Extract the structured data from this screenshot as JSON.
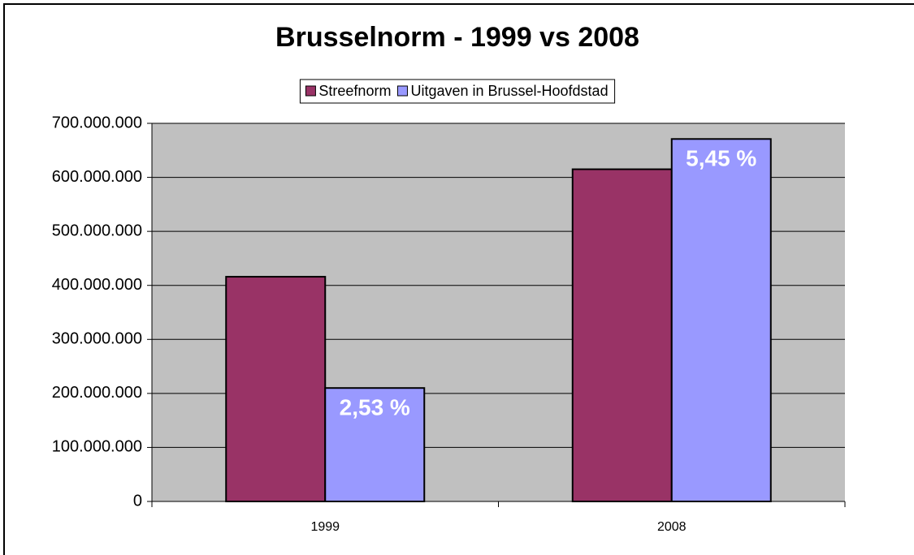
{
  "chart_data": {
    "type": "bar",
    "title": "Brusselnorm - 1999 vs 2008",
    "categories": [
      "1999",
      "2008"
    ],
    "series": [
      {
        "name": "Streefnorm",
        "color": "#993366",
        "values": [
          416000000,
          615000000
        ]
      },
      {
        "name": "Uitgaven in Brussel-Hoofdstad",
        "color": "#9999ff",
        "values": [
          210000000,
          671000000
        ]
      }
    ],
    "annotations": [
      "2,53 %",
      "5,45 %"
    ],
    "ylim": [
      0,
      700000000
    ],
    "yticks": [
      0,
      {
        "value": 100000000,
        "label": "100.000.000"
      },
      {
        "value": 200000000,
        "label": "200.000.000"
      },
      {
        "value": 300000000,
        "label": "300.000.000"
      },
      {
        "value": 400000000,
        "label": "400.000.000"
      },
      {
        "value": 500000000,
        "label": "500.000.000"
      },
      {
        "value": 600000000,
        "label": "600.000.000"
      },
      {
        "value": 700000000,
        "label": "700.000.000"
      }
    ],
    "grid": true,
    "legend": "top"
  }
}
